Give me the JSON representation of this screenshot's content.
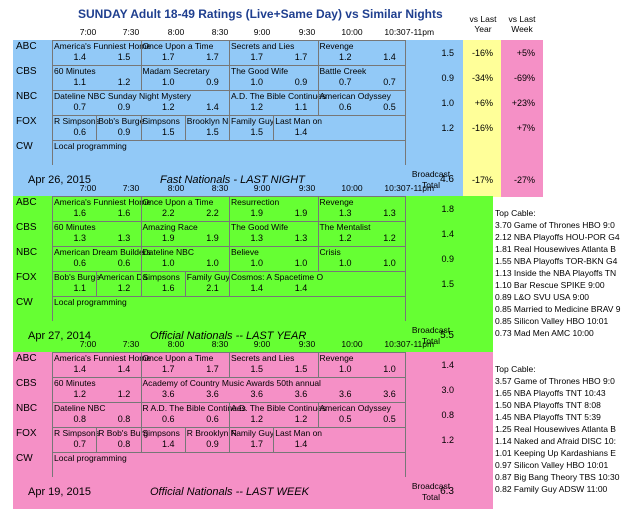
{
  "title": "SUNDAY Adult 18-49 Ratings (Live+Same Day) vs Similar Nights",
  "times": [
    "7:00",
    "7:30",
    "8:00",
    "8:30",
    "9:00",
    "9:30",
    "10:00",
    "10:30",
    "7-11pm"
  ],
  "col_headers": {
    "vs_last_year": "vs Last Year",
    "vs_last_week": "vs Last Week"
  },
  "sections": [
    {
      "id": "fast",
      "color": "#92c9f7",
      "networks": [
        "ABC",
        "CBS",
        "NBC",
        "FOX",
        "CW"
      ],
      "rows": [
        {
          "shows": [
            [
              "America's Funniest Home",
              "Once Upon a Time",
              "Secrets and Lies",
              "Revenge"
            ]
          ],
          "labels": [
            "America's Funniest Home",
            "Once Upon a Time",
            "Secrets and Lies",
            "Revenge"
          ],
          "nums": [
            "1.4",
            "1.5",
            "1.7",
            "1.7",
            "1.7",
            "1.7",
            "1.2",
            "1.4"
          ],
          "total": "1.5",
          "vs_year": "-16%",
          "vs_week": "+5%"
        },
        {
          "labels": [
            "60 Minutes",
            "Madam Secretary",
            "The Good Wife",
            "Battle Creek"
          ],
          "nums": [
            "1.1",
            "1.2",
            "1.0",
            "0.9",
            "1.0",
            "0.9",
            "0.7",
            "0.7"
          ],
          "total": "0.9",
          "vs_year": "-34%",
          "vs_week": "-69%"
        },
        {
          "labels": [
            "Dateline NBC Sunday Night Mystery",
            "A.D. The Bible Continues",
            "American Odyssey"
          ],
          "nums": [
            "0.7",
            "0.9",
            "1.2",
            "1.4",
            "1.2",
            "1.1",
            "0.6",
            "0.5"
          ],
          "total": "1.0",
          "vs_year": "+6%",
          "vs_week": "+23%"
        },
        {
          "labels": [
            "R Simpsons",
            "Bob's Burge",
            "Simpsons",
            "Brooklyn Ni",
            "Family Guy",
            "Last Man on"
          ],
          "nums": [
            "0.6",
            "0.9",
            "1.5",
            "1.5",
            "1.5",
            "1.4"
          ],
          "total": "1.2",
          "vs_year": "-16%",
          "vs_week": "+7%"
        },
        {
          "labels": [
            "Local programming"
          ],
          "nums": [],
          "total": "",
          "vs_year": "",
          "vs_week": ""
        }
      ],
      "footer": {
        "date": "Apr 26, 2015",
        "label": "Fast Nationals - LAST NIGHT",
        "broadcast": "Broadcast",
        "total_label": "Total",
        "total": "4.6",
        "vs_year": "-17%",
        "vs_week": "-27%"
      }
    },
    {
      "id": "lastyear",
      "color": "#66ff33",
      "networks": [
        "ABC",
        "CBS",
        "NBC",
        "FOX",
        "CW"
      ],
      "rows": [
        {
          "labels": [
            "America's Funniest Home",
            "Once Upon a Time",
            "Resurrection",
            "Revenge"
          ],
          "nums": [
            "1.6",
            "1.6",
            "2.2",
            "2.2",
            "1.9",
            "1.9",
            "1.3",
            "1.3"
          ],
          "total": "1.8"
        },
        {
          "labels": [
            "60 Minutes",
            "Amazing Race",
            "The Good Wife",
            "The Mentalist"
          ],
          "nums": [
            "1.3",
            "1.3",
            "1.9",
            "1.9",
            "1.3",
            "1.3",
            "1.2",
            "1.2"
          ],
          "total": "1.4"
        },
        {
          "labels": [
            "American Dream Builders",
            "Dateline NBC",
            "Believe",
            "Crisis"
          ],
          "nums": [
            "0.6",
            "0.6",
            "1.0",
            "1.0",
            "1.0",
            "1.0",
            "1.0",
            "1.0"
          ],
          "total": "0.9"
        },
        {
          "labels": [
            "Bob's Burge",
            "American Da",
            "Simpsons",
            "Family Guy",
            "Cosmos: A Spacetime O"
          ],
          "nums": [
            "1.1",
            "1.2",
            "1.6",
            "2.1",
            "1.4",
            "1.4"
          ],
          "total": "1.5"
        },
        {
          "labels": [
            "Local programming"
          ],
          "nums": [],
          "total": ""
        }
      ],
      "footer": {
        "date": "Apr 27, 2014",
        "label": "Official Nationals -- LAST YEAR",
        "broadcast": "Broadcast",
        "total_label": "Total",
        "total": "5.5"
      },
      "cable_title": "Top Cable:",
      "cable": [
        "3.70 Game of Thrones HBO 9:0",
        "2.12 NBA Playoffs HOU-POR G4",
        "1.81 Real Housewives Atlanta B",
        "1.55 NBA Playoffs TOR-BKN G4",
        "1.13 Inside the NBA Playoffs TN",
        "1.10 Bar Rescue SPIKE 9:00",
        "0.89 L&O SVU USA 9:00",
        "0.85 Married to Medicine BRAV 9",
        "0.85 Silicon Valley HBO 10:01",
        "0.73 Mad Men AMC 10:00"
      ]
    },
    {
      "id": "lastweek",
      "color": "#f590c6",
      "networks": [
        "ABC",
        "CBS",
        "NBC",
        "FOX",
        "CW"
      ],
      "rows": [
        {
          "labels": [
            "America's Funniest Home",
            "Once Upon a Time",
            "Secrets and Lies",
            "Revenge"
          ],
          "nums": [
            "1.4",
            "1.4",
            "1.7",
            "1.7",
            "1.5",
            "1.5",
            "1.0",
            "1.0"
          ],
          "total": "1.4"
        },
        {
          "labels": [
            "60 Minutes",
            "Academy of Country Music Awards 50th annual"
          ],
          "nums": [
            "1.2",
            "1.2",
            "3.6",
            "3.6",
            "3.6",
            "3.6",
            "3.6",
            "3.6"
          ],
          "total": "3.0"
        },
        {
          "labels": [
            "Dateline NBC",
            "R A.D. The Bible Continues",
            "A.D. The Bible Continues",
            "American Odyssey"
          ],
          "nums": [
            "0.8",
            "0.8",
            "0.6",
            "0.6",
            "1.2",
            "1.2",
            "0.5",
            "0.5"
          ],
          "total": "0.8"
        },
        {
          "labels": [
            "R Simpsons",
            "R Bob's Burg",
            "Simpsons",
            "R Brooklyn N",
            "Family Guy",
            "Last Man on"
          ],
          "nums": [
            "0.7",
            "0.8",
            "1.4",
            "0.9",
            "1.7",
            "1.4"
          ],
          "total": "1.2"
        },
        {
          "labels": [
            "Local programming"
          ],
          "nums": [],
          "total": ""
        }
      ],
      "footer": {
        "date": "Apr 19, 2015",
        "label": "Official Nationals -- LAST WEEK",
        "broadcast": "Broadcast",
        "total_label": "Total",
        "total": "6.3"
      },
      "cable_title": "Top Cable:",
      "cable": [
        "3.57 Game of Thrones HBO 9:0",
        "1.65 NBA Playoffs TNT 10:43",
        "1.50 NBA Playoffs TNT 8:08",
        "1.45 NBA Playoffs TNT 5:39",
        "1.25 Real Housewives Atlanta B",
        "1.14 Naked and Afraid DISC 10:",
        "1.01 Keeping Up Kardashians E",
        "0.97 Silicon Valley HBO 10:01",
        "0.87 Big Bang Theory TBS 10:30",
        "0.82 Family Guy ADSW 11:00"
      ]
    }
  ]
}
